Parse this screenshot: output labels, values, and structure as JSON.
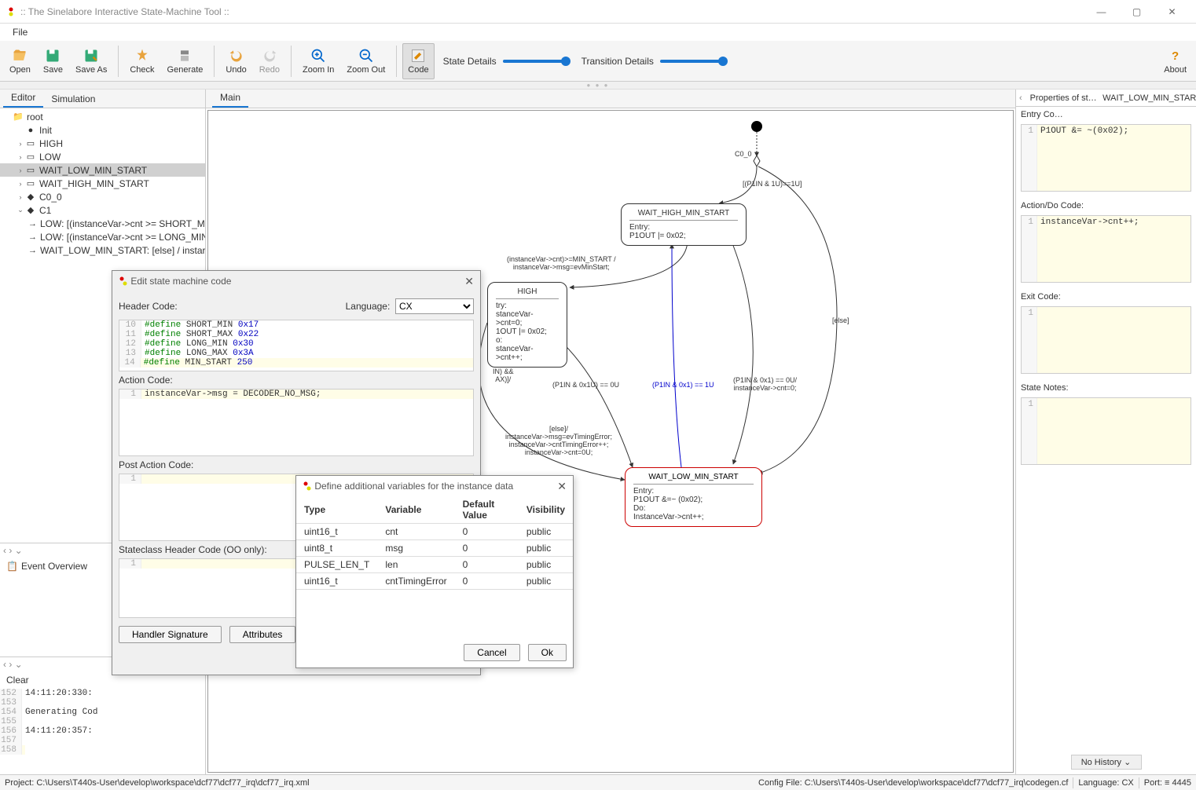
{
  "title": ":: The Sinelabore Interactive State-Machine Tool ::",
  "menu": {
    "file": "File"
  },
  "toolbar": {
    "open": "Open",
    "save": "Save",
    "saveas": "Save As",
    "check": "Check",
    "generate": "Generate",
    "undo": "Undo",
    "redo": "Redo",
    "zoomin": "Zoom In",
    "zoomout": "Zoom Out",
    "code": "Code",
    "state_details": "State Details",
    "transition_details": "Transition Details",
    "about": "About"
  },
  "left_tabs": {
    "editor": "Editor",
    "simulation": "Simulation"
  },
  "tree": [
    {
      "d": 0,
      "arrow": "",
      "glyph": "📁",
      "label": "root"
    },
    {
      "d": 1,
      "arrow": "",
      "glyph": "●",
      "label": "Init"
    },
    {
      "d": 1,
      "arrow": "›",
      "glyph": "▭",
      "label": "HIGH"
    },
    {
      "d": 1,
      "arrow": "›",
      "glyph": "▭",
      "label": "LOW"
    },
    {
      "d": 1,
      "arrow": "›",
      "glyph": "▭",
      "label": "WAIT_LOW_MIN_START",
      "sel": true
    },
    {
      "d": 1,
      "arrow": "›",
      "glyph": "▭",
      "label": "WAIT_HIGH_MIN_START"
    },
    {
      "d": 1,
      "arrow": "›",
      "glyph": "◆",
      "label": "C0_0"
    },
    {
      "d": 1,
      "arrow": "⌄",
      "glyph": "◆",
      "label": "C1"
    },
    {
      "d": 2,
      "arrow": "",
      "glyph": "→",
      "label": "LOW: [(instanceVar->cnt >= SHORT_MI…"
    },
    {
      "d": 2,
      "arrow": "",
      "glyph": "→",
      "label": "LOW: [(instanceVar->cnt >= LONG_MIN…"
    },
    {
      "d": 2,
      "arrow": "",
      "glyph": "→",
      "label": "WAIT_LOW_MIN_START: [else] / instar…"
    }
  ],
  "event_overview": "Event Overview",
  "clear": "Clear",
  "console": [
    {
      "n": "152",
      "t": "14:11:20:330:"
    },
    {
      "n": "153",
      "t": ""
    },
    {
      "n": "154",
      "t": "Generating Cod"
    },
    {
      "n": "155",
      "t": ""
    },
    {
      "n": "156",
      "t": "14:11:20:357:"
    },
    {
      "n": "157",
      "t": ""
    },
    {
      "n": "158",
      "t": ""
    }
  ],
  "canvas_tab": "Main",
  "prop_tabs": {
    "p1": "Properties of st…",
    "p2": "WAIT_LOW_MIN_STAR"
  },
  "props": {
    "entry_label": "Entry Co…",
    "entry_code": "P1OUT &= ~(0x02);",
    "action_label": "Action/Do Code:",
    "action_code": "instanceVar->cnt++;",
    "exit_label": "Exit Code:",
    "exit_code": "",
    "notes_label": "State Notes:",
    "notes": "",
    "history_btn": "No History"
  },
  "status": {
    "project": "Project:",
    "project_path": "C:\\Users\\T440s-User\\develop\\workspace\\dcf77\\dcf77_irq\\dcf77_irq.xml",
    "config": "Config File:",
    "config_path": "C:\\Users\\T440s-User\\develop\\workspace\\dcf77\\dcf77_irq\\codegen.cf",
    "lang": "Language:",
    "lang_val": "CX",
    "port": "Port:",
    "port_val": "4445"
  },
  "diagram": {
    "c0": "C0_0",
    "c0_guard": "[(P1IN & 1U)==1U]",
    "wait_high": {
      "title": "WAIT_HIGH_MIN_START",
      "body": "Entry:\nP1OUT |= 0x02;"
    },
    "high": {
      "title": "HIGH",
      "body": "try:\nstanceVar->cnt=0;\n1OUT |= 0x02;\no:\nstanceVar->cnt++;"
    },
    "wait_low": {
      "title": "WAIT_LOW_MIN_START",
      "body": "Entry:\nP1OUT &=~ (0x02);\nDo:\nInstanceVar->cnt++;"
    },
    "edge_minstart": "(instanceVar->cnt)>=MIN_START /\ninstanceVar->msg=evMinStart;",
    "edge_in_ax": "IN) &&\nAX)]/",
    "edge_p1_0": "(P1IN & 0x1U) == 0U",
    "edge_p1_1": "(P1IN & 0x1) == 1U",
    "edge_p1_cnt0": "(P1IN & 0x1) == 0U/\ninstanceVar->cnt=0;",
    "edge_else": "[else]",
    "edge_timing": "[else]/\ninstanceVar->msg=evTimingError;\ninstanceVar->cntTimingError++;\ninstanceVar->cnt=0U;"
  },
  "dlg_code": {
    "title": "Edit state machine code",
    "header_label": "Header Code:",
    "language_label": "Language:",
    "language_value": "CX",
    "lines": [
      {
        "n": "10",
        "raw": "#define SHORT_MIN 0x17  //"
      },
      {
        "n": "11",
        "raw": "#define SHORT_MAX 0x22  //"
      },
      {
        "n": "12",
        "raw": "#define LONG_MIN 0x30   //"
      },
      {
        "n": "13",
        "raw": "#define LONG_MAX 0x3A   //"
      },
      {
        "n": "14",
        "raw": "#define MIN_START 250",
        "hl": true
      }
    ],
    "action_label": "Action Code:",
    "action_line": {
      "n": "1",
      "raw": "instanceVar->msg = DECODER_NO_MSG;"
    },
    "post_label": "Post Action Code:",
    "stateclass_label": "Stateclass Header Code (OO only):",
    "handler_btn": "Handler Signature",
    "attrib_btn": "Attributes"
  },
  "dlg_vars": {
    "title": "Define additional variables for the instance data",
    "cols": [
      "Type",
      "Variable",
      "Default Value",
      "Visibility"
    ],
    "rows": [
      [
        "uint16_t",
        "cnt",
        "0",
        "public"
      ],
      [
        "uint8_t",
        "msg",
        "0",
        "public"
      ],
      [
        "PULSE_LEN_T",
        "len",
        "0",
        "public"
      ],
      [
        "uint16_t",
        "cntTimingError",
        "0",
        "public"
      ]
    ],
    "cancel": "Cancel",
    "ok": "Ok"
  }
}
